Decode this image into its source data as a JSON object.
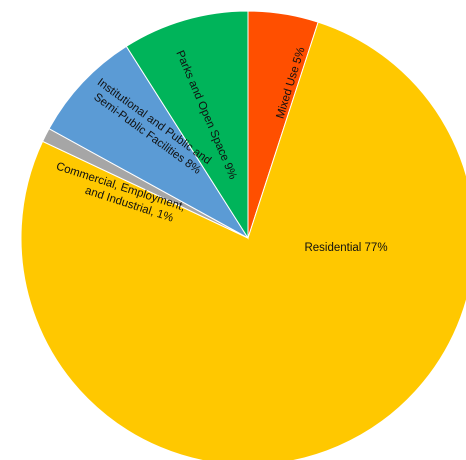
{
  "chart_data": {
    "type": "pie",
    "title": "",
    "start_angle_deg": 0,
    "direction": "clockwise",
    "slices": [
      {
        "label": "Mixed Use 5%",
        "value": 5,
        "color": "#FF4F00"
      },
      {
        "label": "Residential 77%",
        "value": 77,
        "color": "#FFC800"
      },
      {
        "label": "Commercial, Employment, and Industrial, 1%",
        "value": 1,
        "color": "#A6A6A6"
      },
      {
        "label": "Institutional and Public and Semi-Public Facilities 8%",
        "value": 8,
        "color": "#5B9BD5"
      },
      {
        "label": "Parks and Open Space 9%",
        "value": 9,
        "color": "#00B45A"
      }
    ]
  }
}
